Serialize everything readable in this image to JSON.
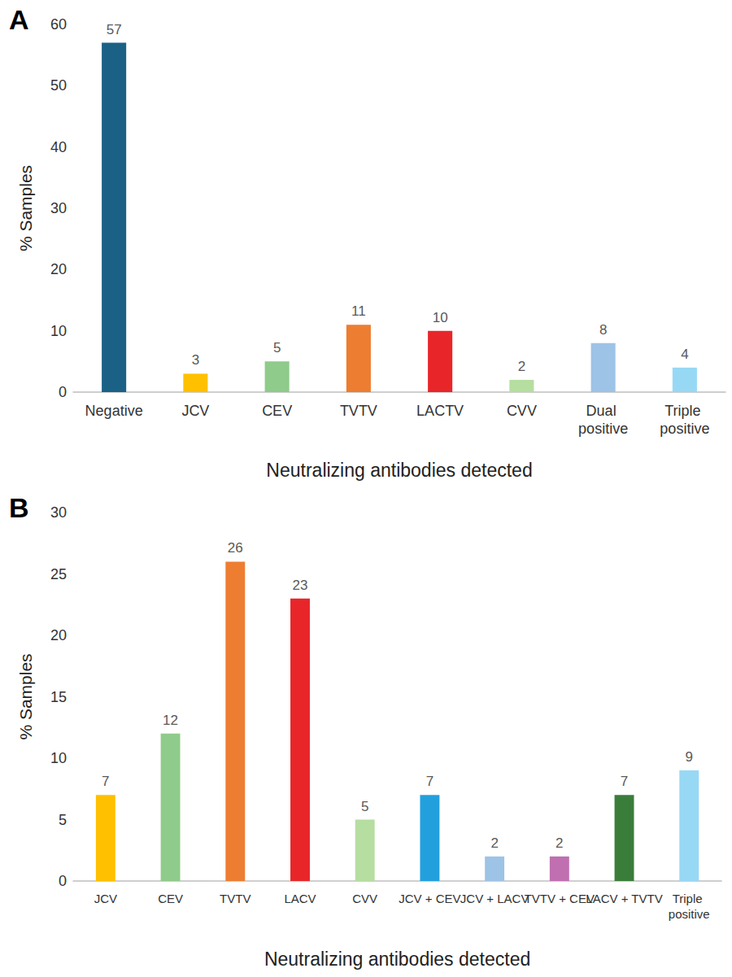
{
  "chart_data": [
    {
      "type": "bar",
      "title": "A",
      "x_label": "Neutralizing antibodies detected",
      "y_label": "% Samples",
      "categories": [
        "Negative",
        "JCV",
        "CEV",
        "TVTV",
        "LACTV",
        "CVV",
        "Dual positive",
        "Triple positive"
      ],
      "values": [
        57,
        3,
        5,
        11,
        10,
        2,
        8,
        4
      ],
      "colors": [
        "#1b6186",
        "#ffc000",
        "#8fcb8a",
        "#ed7d31",
        "#e8262a",
        "#b5dea0",
        "#9dc3e6",
        "#97d8f5"
      ],
      "ylim": [
        0,
        60
      ],
      "yticks": [
        0,
        10,
        20,
        30,
        40,
        50,
        60
      ],
      "grid": false,
      "data_labels": true
    },
    {
      "type": "bar",
      "title": "B",
      "x_label": "Neutralizing antibodies detected",
      "y_label": "% Samples",
      "categories": [
        "JCV",
        "CEV",
        "TVTV",
        "LACV",
        "CVV",
        "JCV + CEV",
        "JCV + LACV",
        "TVTV + CEV",
        "LACV + TVTV",
        "Triple positive"
      ],
      "values": [
        7,
        12,
        26,
        23,
        5,
        7,
        2,
        2,
        7,
        9
      ],
      "colors": [
        "#ffc000",
        "#8fcb8a",
        "#ed7d31",
        "#e8262a",
        "#b5dea0",
        "#22a0de",
        "#9dc3e6",
        "#c06fb0",
        "#3a7d3a",
        "#97d8f5"
      ],
      "ylim": [
        0,
        30
      ],
      "yticks": [
        0,
        5,
        10,
        15,
        20,
        25,
        30
      ],
      "grid": false,
      "data_labels": true
    }
  ]
}
